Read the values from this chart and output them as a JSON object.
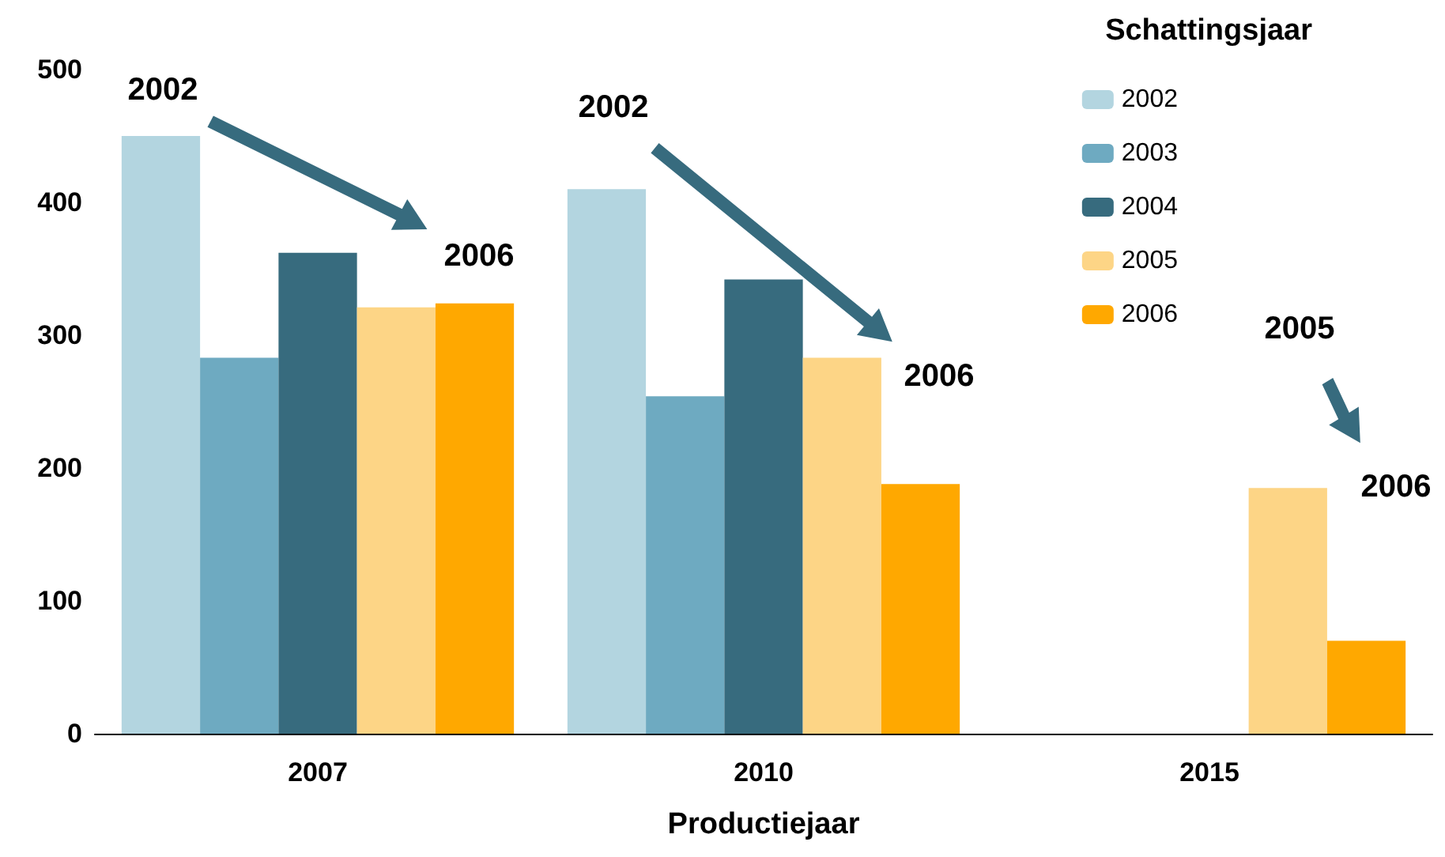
{
  "chart_data": {
    "type": "bar",
    "xlabel": "Productiejaar",
    "legend_title": "Schattingsjaar",
    "categories": [
      "2007",
      "2010",
      "2015"
    ],
    "series": [
      {
        "name": "2002",
        "color": "#b3d5e0",
        "values": [
          450,
          410,
          null
        ]
      },
      {
        "name": "2003",
        "color": "#6eaac1",
        "values": [
          283,
          254,
          null
        ]
      },
      {
        "name": "2004",
        "color": "#376b7e",
        "values": [
          362,
          342,
          null
        ]
      },
      {
        "name": "2005",
        "color": "#fdd586",
        "values": [
          321,
          283,
          185
        ]
      },
      {
        "name": "2006",
        "color": "#ffa800",
        "values": [
          324,
          188,
          70
        ]
      }
    ],
    "ylim": [
      0,
      500
    ],
    "yticks": [
      0,
      100,
      200,
      300,
      400,
      500
    ],
    "grid": false,
    "legend": "top right",
    "annotations": [
      "2002",
      "2006",
      "2002",
      "2006",
      "2005",
      "2006"
    ]
  }
}
